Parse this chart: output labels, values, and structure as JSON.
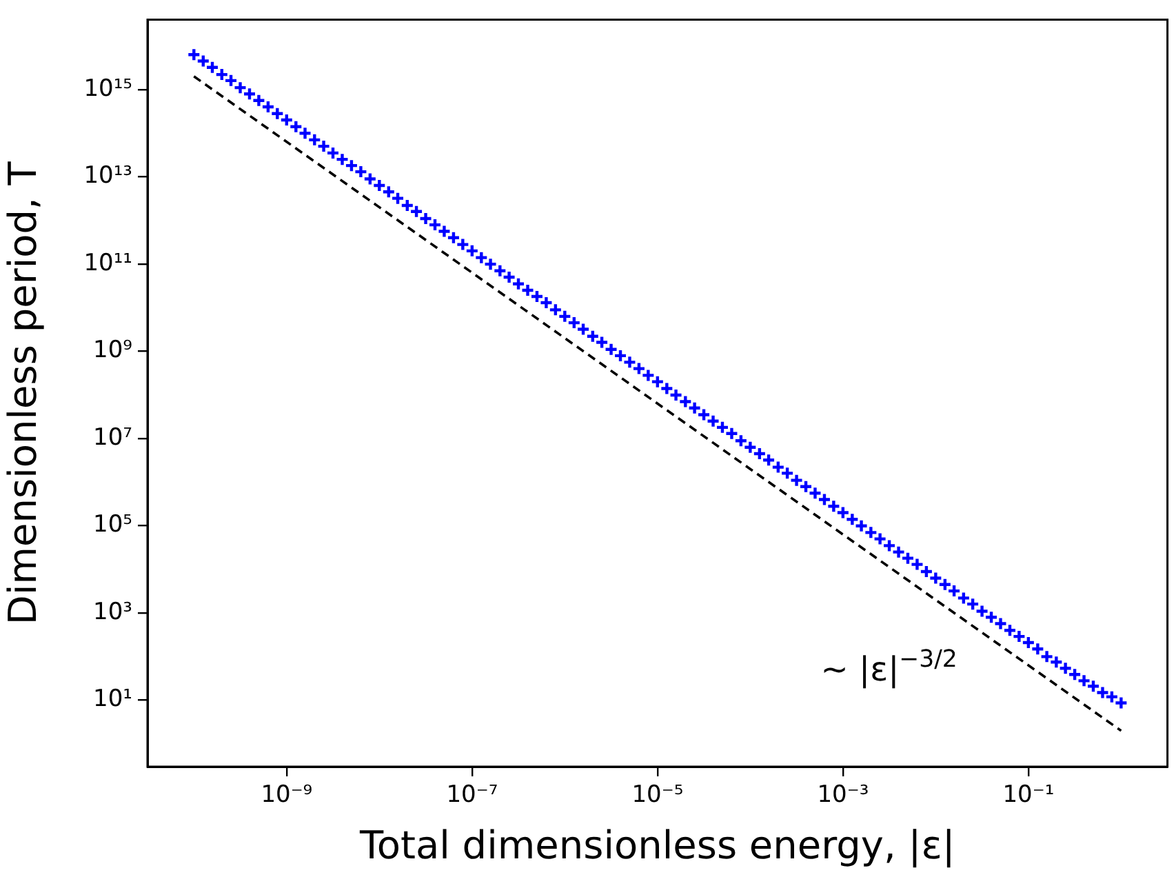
{
  "chart_data": {
    "type": "scatter",
    "xlabel": "Total dimensionless energy, |ε|",
    "ylabel": "Dimensionless period, T",
    "log": "xy",
    "xlim": [
      3.16e-11,
      3.16
    ],
    "ylim": [
      0.34,
      4e+16
    ],
    "xticks": [
      {
        "value": 1e-09,
        "label": "10⁻⁹"
      },
      {
        "value": 1e-07,
        "label": "10⁻⁷"
      },
      {
        "value": 1e-05,
        "label": "10⁻⁵"
      },
      {
        "value": 0.001,
        "label": "10⁻³"
      },
      {
        "value": 0.1,
        "label": "10⁻¹"
      }
    ],
    "yticks": [
      {
        "value": 10,
        "label": "10¹"
      },
      {
        "value": 1000,
        "label": "10³"
      },
      {
        "value": 100000.0,
        "label": "10⁵"
      },
      {
        "value": 10000000.0,
        "label": "10⁷"
      },
      {
        "value": 1000000000.0,
        "label": "10⁹"
      },
      {
        "value": 100000000000.0,
        "label": "10¹¹"
      },
      {
        "value": 10000000000000.0,
        "label": "10¹³"
      },
      {
        "value": 1000000000000000.0,
        "label": "10¹⁵"
      }
    ],
    "annotations": [
      "∼ |ε|$^{−3/2}$"
    ],
    "series": [
      {
        "type": "scatter",
        "color": "#0000ff",
        "marker": "cross",
        "x": [
          1e-10,
          1.26e-10,
          1.58e-10,
          2e-10,
          2.51e-10,
          3.16e-10,
          3.98e-10,
          5.01e-10,
          6.31e-10,
          7.94e-10,
          1e-09,
          1.26e-09,
          1.58e-09,
          2e-09,
          2.51e-09,
          3.16e-09,
          3.98e-09,
          5.01e-09,
          6.31e-09,
          7.94e-09,
          1e-08,
          1.26e-08,
          1.58e-08,
          2e-08,
          2.51e-08,
          3.16e-08,
          3.98e-08,
          5.01e-08,
          6.31e-08,
          7.94e-08,
          1e-07,
          1.26e-07,
          1.58e-07,
          2e-07,
          2.51e-07,
          3.16e-07,
          3.98e-07,
          5.01e-07,
          6.31e-07,
          7.94e-07,
          1e-06,
          1.26e-06,
          1.58e-06,
          2e-06,
          2.51e-06,
          3.16e-06,
          3.98e-06,
          5.01e-06,
          6.31e-06,
          7.94e-06,
          1e-05,
          1.26e-05,
          1.58e-05,
          2e-05,
          2.51e-05,
          3.16e-05,
          3.98e-05,
          5.01e-05,
          6.31e-05,
          7.94e-05,
          0.0001,
          0.000126,
          0.000158,
          0.0002,
          0.000251,
          0.000316,
          0.000398,
          0.000501,
          0.000631,
          0.000794,
          0.001,
          0.00126,
          0.00158,
          0.002,
          0.00251,
          0.00316,
          0.00398,
          0.00501,
          0.00631,
          0.00794,
          0.01,
          0.0126,
          0.0158,
          0.02,
          0.0251,
          0.0316,
          0.0398,
          0.0501,
          0.0631,
          0.0794,
          0.1,
          0.126,
          0.158,
          0.2,
          0.251,
          0.316,
          0.398,
          0.501,
          0.631,
          0.794,
          1
        ],
        "values": [
          6300000000000000.0,
          4500000000000000.0,
          3200000000000000.0,
          2200000000000000.0,
          1600000000000000.0,
          1100000000000000.0,
          790000000000000.0,
          560000000000000.0,
          400000000000000.0,
          280000000000000.0,
          200000000000000.0,
          140000000000000.0,
          99000000000000.0,
          70000000000000.0,
          50000000000000.0,
          35000000000000.0,
          25000000000000.0,
          18000000000000.0,
          13000000000000.0,
          8900000000000.0,
          6300000000000.0,
          4500000000000.0,
          3200000000000.0,
          2200000000000.0,
          1600000000000.0,
          1100000000000.0,
          790000000000.0,
          560000000000.0,
          400000000000.0,
          280000000000.0,
          200000000000.0,
          140000000000.0,
          99000000000.0,
          70000000000.0,
          50000000000.0,
          35000000000.0,
          25000000000.0,
          18000000000.0,
          13000000000.0,
          8900000000.0,
          6300000000.0,
          4500000000.0,
          3200000000.0,
          2200000000.0,
          1600000000.0,
          1100000000.0,
          790000000.0,
          560000000.0,
          400000000.0,
          280000000.0,
          200000000.0,
          140000000.0,
          99000000.0,
          70000000.0,
          50000000.0,
          35000000.0,
          25000000.0,
          18000000.0,
          13000000.0,
          8900000.0,
          6300000.0,
          4500000.0,
          3200000.0,
          2200000.0,
          1600000.0,
          1100000.0,
          790000.0,
          560000.0,
          400000.0,
          280000.0,
          200000.0,
          140000.0,
          99000.0,
          70000.0,
          50000.0,
          35000.0,
          25000.0,
          18000.0,
          13000.0,
          8900.0,
          6300.0,
          4500.0,
          3200.0,
          2200.0,
          1600.0,
          1100.0,
          800,
          570,
          400,
          290,
          210,
          150,
          100,
          75,
          54,
          39,
          28,
          21,
          15,
          12,
          8.7
        ]
      },
      {
        "type": "line",
        "color": "#000000",
        "marker": "none",
        "line_style": "dashed",
        "x": [
          1e-10,
          1
        ],
        "values": [
          2000000000000000.0,
          2
        ]
      }
    ]
  }
}
